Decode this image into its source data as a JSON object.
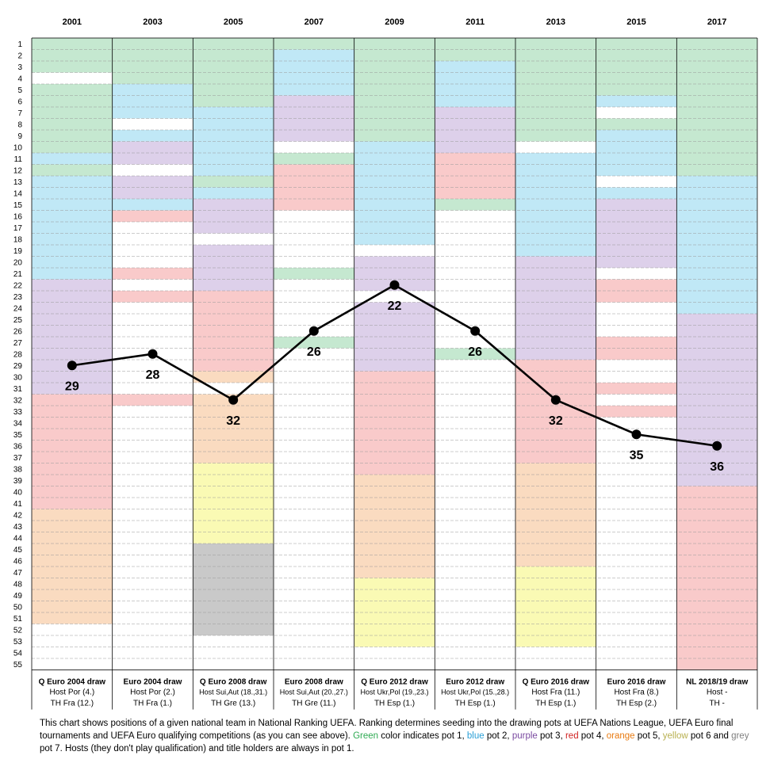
{
  "chart_data": {
    "type": "line",
    "categories": [
      "2001",
      "2003",
      "2005",
      "2007",
      "2009",
      "2011",
      "2013",
      "2015",
      "2017"
    ],
    "values": [
      29,
      28,
      32,
      26,
      22,
      26,
      32,
      35,
      36
    ],
    "ylim": [
      1,
      55
    ],
    "y_inverted": true,
    "rank_ticks": [
      "1",
      "2",
      "3",
      "4",
      "5",
      "6",
      "7",
      "8",
      "9",
      "10",
      "11",
      "12",
      "13",
      "14",
      "15",
      "16",
      "17",
      "18",
      "19",
      "20",
      "21",
      "22",
      "23",
      "24",
      "25",
      "26",
      "27",
      "28",
      "29",
      "30",
      "31",
      "32",
      "33",
      "34",
      "35",
      "36",
      "37",
      "38",
      "39",
      "40",
      "41",
      "42",
      "43",
      "44",
      "45",
      "46",
      "47",
      "48",
      "49",
      "50",
      "51",
      "52",
      "53",
      "54",
      "55"
    ],
    "point_labels": [
      "29",
      "28",
      "32",
      "26",
      "22",
      "26",
      "32",
      "35",
      "36"
    ],
    "grid": true,
    "column_captions": [
      {
        "title": "Q Euro 2004 draw",
        "line1": "Host Por (4.)",
        "line2": "TH Fra (12.)"
      },
      {
        "title": "Euro 2004 draw",
        "line1": "Host Por (2.)",
        "line2": "TH Fra (1.)"
      },
      {
        "title": "Q Euro 2008 draw",
        "line1": "Host Sui,Aut (18.,31.)",
        "line2": "TH Gre (13.)"
      },
      {
        "title": "Euro 2008 draw",
        "line1": "Host Sui,Aut (20.,27.)",
        "line2": "TH Gre (11.)"
      },
      {
        "title": "Q Euro 2012 draw",
        "line1": "Host Ukr,Pol (19.,23.)",
        "line2": "TH Esp (1.)"
      },
      {
        "title": "Euro 2012 draw",
        "line1": "Host Ukr,Pol (15.,28.)",
        "line2": "TH Esp (1.)"
      },
      {
        "title": "Q Euro 2016 draw",
        "line1": "Host Fra (11.)",
        "line2": "TH Esp (1.)"
      },
      {
        "title": "Euro 2016 draw",
        "line1": "Host Fra (8.)",
        "line2": "TH Esp (2.)"
      },
      {
        "title": "NL 2018/19 draw",
        "line1": "Host -",
        "line2": "TH -"
      }
    ],
    "pot_colors": {
      "G": "#c5e8d0",
      "B": "#c0e8f6",
      "P": "#ddd0ea",
      "R": "#f9caca",
      "O": "#fadbc0",
      "Y": "#fafab4",
      "X": "#c9c9c9",
      "W": "#ffffff"
    },
    "pot_segments": [
      [
        [
          "G",
          1,
          3
        ],
        [
          "W",
          4,
          4
        ],
        [
          "G",
          5,
          10
        ],
        [
          "B",
          11,
          11
        ],
        [
          "G",
          12,
          12
        ],
        [
          "B",
          13,
          21
        ],
        [
          "P",
          22,
          31
        ],
        [
          "R",
          32,
          41
        ],
        [
          "O",
          42,
          51
        ],
        [
          "W",
          52,
          55
        ]
      ],
      [
        [
          "G",
          1,
          4
        ],
        [
          "B",
          5,
          7
        ],
        [
          "W",
          8,
          8
        ],
        [
          "B",
          9,
          9
        ],
        [
          "P",
          10,
          11
        ],
        [
          "W",
          12,
          12
        ],
        [
          "P",
          13,
          14
        ],
        [
          "B",
          15,
          15
        ],
        [
          "R",
          16,
          16
        ],
        [
          "W",
          17,
          20
        ],
        [
          "R",
          21,
          21
        ],
        [
          "W",
          22,
          22
        ],
        [
          "R",
          23,
          23
        ],
        [
          "W",
          24,
          31
        ],
        [
          "R",
          32,
          32
        ],
        [
          "W",
          33,
          55
        ]
      ],
      [
        [
          "G",
          1,
          6
        ],
        [
          "B",
          7,
          12
        ],
        [
          "G",
          13,
          13
        ],
        [
          "B",
          14,
          14
        ],
        [
          "P",
          15,
          17
        ],
        [
          "W",
          18,
          18
        ],
        [
          "P",
          19,
          22
        ],
        [
          "R",
          23,
          29
        ],
        [
          "O",
          30,
          30
        ],
        [
          "W",
          31,
          31
        ],
        [
          "O",
          32,
          37
        ],
        [
          "Y",
          38,
          44
        ],
        [
          "X",
          45,
          52
        ],
        [
          "W",
          53,
          55
        ]
      ],
      [
        [
          "G",
          1,
          1
        ],
        [
          "B",
          2,
          5
        ],
        [
          "P",
          6,
          9
        ],
        [
          "W",
          10,
          10
        ],
        [
          "G",
          11,
          11
        ],
        [
          "R",
          12,
          15
        ],
        [
          "W",
          16,
          20
        ],
        [
          "G",
          21,
          21
        ],
        [
          "W",
          22,
          26
        ],
        [
          "G",
          27,
          27
        ],
        [
          "W",
          28,
          55
        ]
      ],
      [
        [
          "G",
          1,
          9
        ],
        [
          "B",
          10,
          18
        ],
        [
          "W",
          19,
          19
        ],
        [
          "P",
          20,
          22
        ],
        [
          "W",
          23,
          23
        ],
        [
          "P",
          24,
          29
        ],
        [
          "R",
          30,
          38
        ],
        [
          "O",
          39,
          47
        ],
        [
          "Y",
          48,
          53
        ],
        [
          "W",
          54,
          55
        ]
      ],
      [
        [
          "G",
          1,
          2
        ],
        [
          "B",
          3,
          6
        ],
        [
          "P",
          7,
          10
        ],
        [
          "R",
          11,
          14
        ],
        [
          "G",
          15,
          15
        ],
        [
          "W",
          16,
          27
        ],
        [
          "G",
          28,
          28
        ],
        [
          "W",
          29,
          55
        ]
      ],
      [
        [
          "G",
          1,
          9
        ],
        [
          "W",
          10,
          10
        ],
        [
          "B",
          11,
          19
        ],
        [
          "P",
          20,
          28
        ],
        [
          "R",
          29,
          37
        ],
        [
          "O",
          38,
          46
        ],
        [
          "Y",
          47,
          53
        ],
        [
          "W",
          54,
          55
        ]
      ],
      [
        [
          "G",
          1,
          5
        ],
        [
          "B",
          6,
          6
        ],
        [
          "W",
          7,
          7
        ],
        [
          "G",
          8,
          8
        ],
        [
          "B",
          9,
          12
        ],
        [
          "W",
          13,
          13
        ],
        [
          "B",
          14,
          14
        ],
        [
          "P",
          15,
          20
        ],
        [
          "W",
          21,
          21
        ],
        [
          "R",
          22,
          23
        ],
        [
          "W",
          24,
          26
        ],
        [
          "R",
          27,
          28
        ],
        [
          "W",
          29,
          30
        ],
        [
          "R",
          31,
          31
        ],
        [
          "W",
          32,
          32
        ],
        [
          "R",
          33,
          33
        ],
        [
          "W",
          34,
          55
        ]
      ],
      [
        [
          "G",
          1,
          12
        ],
        [
          "B",
          13,
          24
        ],
        [
          "P",
          25,
          39
        ],
        [
          "R",
          40,
          55
        ]
      ]
    ]
  },
  "caption": {
    "part1": "This chart shows positions of a given national team in National Ranking UEFA. Ranking determines seeding into the drawing pots at UEFA Nations League, UEFA Euro final tournaments and UEFA Euro qualifying competitions (as you can see above). ",
    "green_word": "Green",
    "part2": " color indicates pot 1, ",
    "blue_word": "blue",
    "part3": " pot 2, ",
    "purple_word": "purple",
    "part4": " pot 3, ",
    "red_word": "red",
    "part5": " pot 4, ",
    "orange_word": "orange",
    "part6": " pot 5, ",
    "yellow_word": "yellow",
    "part7": " pot 6 and ",
    "grey_word": "grey",
    "part8": " pot 7. Hosts (they don't play qualification) and title holders are always in pot 1.",
    "colors": {
      "green": "#2eaa52",
      "blue": "#2a9fd6",
      "purple": "#7a4aa0",
      "red": "#d02020",
      "orange": "#e87a10",
      "yellow": "#b8b050",
      "grey": "#808080"
    }
  }
}
